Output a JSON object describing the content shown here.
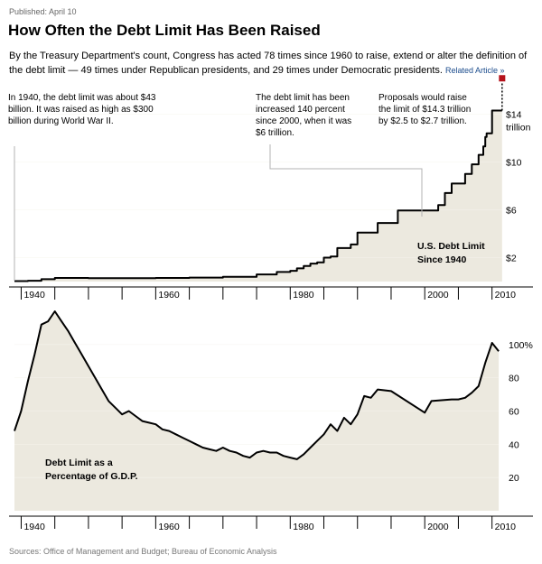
{
  "header": {
    "published": "Published: April 10",
    "title": "How Often the Debt Limit Has Been Raised",
    "intro": "By the Treasury Department's count, Congress has acted 78 times since 1960 to raise, extend or alter the definition of the debt limit — 49 times under Republican presidents, and 29 times under Democratic presidents.",
    "related_link": "Related Article »"
  },
  "annotations": {
    "wwii": "In 1940, the debt limit was about $43 billion. It was raised as high as $300 billion during World War II.",
    "since2000": "The debt limit has been increased 140 percent since 2000, when it was $6 trillion.",
    "proposals": "Proposals would raise the limit of $14.3 trillion by $2.5 to $2.7 trillion."
  },
  "footer": {
    "sources": "Sources: Office of Management and Budget; Bureau of Economic Analysis"
  },
  "colors": {
    "fill": "#ece9df",
    "line": "#000000",
    "proposal_marker": "#b5121b",
    "leader": "#b3b3b3"
  },
  "chart_data": [
    {
      "type": "area",
      "title": "",
      "caption": [
        "U.S. Debt Limit",
        "Since 1940"
      ],
      "x_ticks": [
        "1940",
        "1960",
        "1980",
        "2000",
        "2010"
      ],
      "x_tick_values": [
        1940,
        1960,
        1980,
        2000,
        2010
      ],
      "x_range": [
        1939,
        2013
      ],
      "y_range": [
        0,
        16
      ],
      "y_ticks": [
        {
          "value": 2,
          "label": "$2"
        },
        {
          "value": 6,
          "label": "$6"
        },
        {
          "value": 10,
          "label": "$10"
        },
        {
          "value": 14,
          "label": "$14"
        }
      ],
      "y_unit_label": "trillion",
      "step": true,
      "series": [
        {
          "x": [
            1939,
            1941,
            1943,
            1945,
            1950,
            1960,
            1965,
            1970,
            1975,
            1978,
            1980,
            1981,
            1982,
            1983,
            1984,
            1985,
            1986,
            1987,
            1989,
            1990,
            1993,
            1996,
            2002,
            2003,
            2004,
            2006,
            2007,
            2008,
            2008.7,
            2009,
            2009.2,
            2010,
            2010.1,
            2011.5
          ],
          "y": [
            0.04,
            0.07,
            0.2,
            0.3,
            0.28,
            0.3,
            0.33,
            0.4,
            0.6,
            0.8,
            0.9,
            1.1,
            1.3,
            1.5,
            1.6,
            2.0,
            2.1,
            2.8,
            3.1,
            4.1,
            4.9,
            5.95,
            6.4,
            7.4,
            8.2,
            9.0,
            9.8,
            10.6,
            11.3,
            12.1,
            12.4,
            14.3,
            14.3,
            14.3
          ]
        }
      ],
      "proposal": {
        "x": 2011.5,
        "y_from": 14.3,
        "y_to": 17.0
      }
    },
    {
      "type": "area",
      "title": "",
      "caption": [
        "Debt Limit as a",
        "Percentage of G.D.P."
      ],
      "x_ticks": [
        "1940",
        "1960",
        "1980",
        "2000",
        "2010"
      ],
      "x_tick_values": [
        1940,
        1960,
        1980,
        2000,
        2010
      ],
      "x_range": [
        1939,
        2013
      ],
      "y_range": [
        0,
        120
      ],
      "y_ticks": [
        {
          "value": 20,
          "label": "20"
        },
        {
          "value": 40,
          "label": "40"
        },
        {
          "value": 60,
          "label": "60"
        },
        {
          "value": 80,
          "label": "80"
        },
        {
          "value": 100,
          "label": "100%"
        }
      ],
      "series": [
        {
          "x": [
            1939,
            1940,
            1941,
            1942,
            1943,
            1944,
            1945,
            1946,
            1947,
            1948,
            1949,
            1950,
            1951,
            1952,
            1953,
            1954,
            1955,
            1956,
            1957,
            1958,
            1959,
            1960,
            1961,
            1962,
            1963,
            1964,
            1965,
            1966,
            1967,
            1968,
            1969,
            1970,
            1971,
            1972,
            1973,
            1974,
            1975,
            1976,
            1977,
            1978,
            1979,
            1980,
            1981,
            1982,
            1983,
            1984,
            1985,
            1986,
            1987,
            1988,
            1989,
            1990,
            1991,
            1992,
            1993,
            1995,
            2000,
            2001,
            2004,
            2005,
            2006,
            2007,
            2008,
            2009,
            2010,
            2011
          ],
          "y": [
            48,
            60,
            78,
            94,
            112,
            114,
            120,
            114,
            108,
            101,
            94,
            87,
            80,
            73,
            66,
            62,
            58,
            60,
            57,
            54,
            53,
            52,
            49,
            48,
            46,
            44,
            42,
            40,
            38,
            37,
            36,
            38,
            36,
            35,
            33,
            32,
            35,
            36,
            35,
            35,
            33,
            32,
            31,
            34,
            38,
            42,
            46,
            52,
            48,
            56,
            52,
            58,
            69,
            68,
            73,
            72,
            59,
            66,
            67,
            67,
            68,
            71,
            75,
            89,
            101,
            96
          ]
        }
      ]
    }
  ]
}
